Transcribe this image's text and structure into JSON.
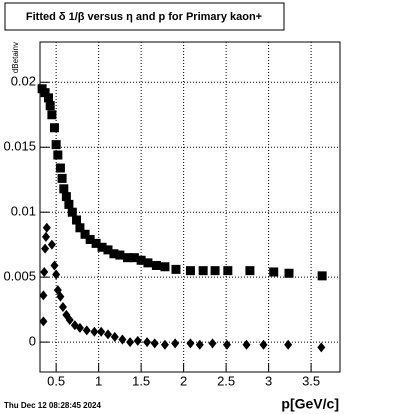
{
  "chart_data": {
    "type": "scatter",
    "title": "Fitted δ 1/β versus η and p for Primary kaon+",
    "x_label": "p[GeV/c]",
    "y_label": "dBetainv",
    "footer": "Thu Dec 12 08:28:45 2024",
    "xlim": [
      0.31,
      3.84
    ],
    "ylim": [
      -0.0023,
      0.0231
    ],
    "xticks": [
      0.5,
      1,
      1.5,
      2,
      2.5,
      3,
      3.5
    ],
    "yticks": [
      0,
      0.005,
      0.01,
      0.015,
      0.02
    ],
    "grid": true,
    "series": [
      {
        "color": "#000000",
        "marker": "square",
        "x": [
          0.335,
          0.37,
          0.41,
          0.43,
          0.45,
          0.48,
          0.5,
          0.52,
          0.55,
          0.57,
          0.59,
          0.62,
          0.65,
          0.69,
          0.74,
          0.78,
          0.84,
          0.9,
          0.97,
          1.04,
          1.11,
          1.18,
          1.25,
          1.34,
          1.42,
          1.5,
          1.58,
          1.68,
          1.78,
          1.91,
          2.08,
          2.23,
          2.37,
          2.52,
          2.78,
          3.06,
          3.24,
          3.63
        ],
        "values": [
          0.0195,
          0.0192,
          0.0188,
          0.0182,
          0.0175,
          0.0165,
          0.0152,
          0.0144,
          0.0134,
          0.0126,
          0.0118,
          0.0112,
          0.0106,
          0.01,
          0.0094,
          0.0088,
          0.0083,
          0.0079,
          0.0076,
          0.0073,
          0.0071,
          0.0068,
          0.0067,
          0.0065,
          0.0065,
          0.0063,
          0.0061,
          0.0059,
          0.0058,
          0.0056,
          0.0055,
          0.0055,
          0.0055,
          0.0055,
          0.0055,
          0.0054,
          0.0053,
          0.0051
        ]
      },
      {
        "color": "#000000",
        "marker": "diamond",
        "x": [
          0.35,
          0.35,
          0.36,
          0.37,
          0.38,
          0.39,
          0.45,
          0.48,
          0.5,
          0.52,
          0.55,
          0.58,
          0.62,
          0.66,
          0.72,
          0.78,
          0.86,
          0.95,
          1.03,
          1.11,
          1.19,
          1.28,
          1.37,
          1.46,
          1.57,
          1.66,
          1.78,
          1.9,
          2.08,
          2.19,
          2.34,
          2.51,
          2.74,
          2.94,
          3.23,
          3.62
        ],
        "values": [
          0.0016,
          0.0036,
          0.0054,
          0.0072,
          0.0081,
          0.0088,
          0.0075,
          0.0059,
          0.0052,
          0.004,
          0.0035,
          0.0027,
          0.0021,
          0.0017,
          0.0013,
          0.0011,
          0.0009,
          0.0008,
          0.0008,
          0.0006,
          0.0004,
          0.0002,
          0,
          0.0001,
          0,
          -0.0001,
          -0.0002,
          -0.0001,
          -0.0001,
          -0.0002,
          -0.0001,
          -0.0002,
          -0.0002,
          -0.0002,
          -0.0002,
          -0.0004
        ]
      }
    ]
  }
}
